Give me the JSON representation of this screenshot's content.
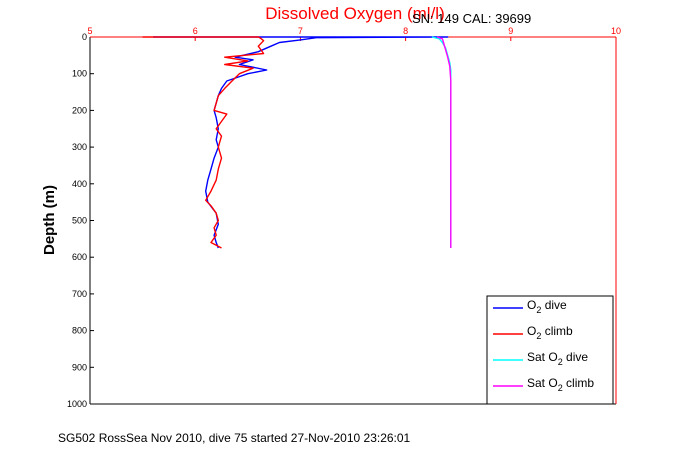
{
  "chart_data": {
    "type": "line",
    "title": "Dissolved Oxygen (ml/l)",
    "subtitle": "SN: 149  CAL: 39699",
    "ylabel": "Depth (m)",
    "caption": "SG502 RossSea Nov 2010, dive 75 started 27-Nov-2010 23:26:01",
    "xlim": [
      5,
      10
    ],
    "ylim": [
      0,
      1000
    ],
    "y_reversed": true,
    "x_axis_position": "top",
    "xticks": [
      5,
      6,
      7,
      8,
      9,
      10
    ],
    "yticks": [
      0,
      100,
      200,
      300,
      400,
      500,
      600,
      700,
      800,
      900,
      1000
    ],
    "grid": true,
    "legend_position": "bottom-right",
    "series": [
      {
        "name": "O2 dive",
        "label_main": "O",
        "label_sub": "2",
        "label_rest": " dive",
        "color": "#0000ff",
        "points": [
          [
            5.6,
            0
          ],
          [
            8.4,
            0
          ],
          [
            7.15,
            2
          ],
          [
            7.0,
            8
          ],
          [
            6.8,
            15
          ],
          [
            6.72,
            25
          ],
          [
            6.6,
            40
          ],
          [
            6.38,
            55
          ],
          [
            6.55,
            62
          ],
          [
            6.42,
            75
          ],
          [
            6.68,
            90
          ],
          [
            6.5,
            100
          ],
          [
            6.4,
            110
          ],
          [
            6.3,
            120
          ],
          [
            6.25,
            140
          ],
          [
            6.22,
            160
          ],
          [
            6.2,
            180
          ],
          [
            6.18,
            200
          ],
          [
            6.2,
            220
          ],
          [
            6.22,
            250
          ],
          [
            6.2,
            280
          ],
          [
            6.22,
            300
          ],
          [
            6.18,
            330
          ],
          [
            6.15,
            360
          ],
          [
            6.12,
            390
          ],
          [
            6.1,
            420
          ],
          [
            6.12,
            450
          ],
          [
            6.2,
            480
          ],
          [
            6.22,
            510
          ],
          [
            6.18,
            540
          ],
          [
            6.2,
            560
          ],
          [
            6.22,
            575
          ]
        ]
      },
      {
        "name": "O2 climb",
        "label_main": "O",
        "label_sub": "2",
        "label_rest": " climb",
        "color": "#ff0000",
        "points": [
          [
            6.25,
            575
          ],
          [
            6.15,
            560
          ],
          [
            6.2,
            540
          ],
          [
            6.18,
            520
          ],
          [
            6.22,
            500
          ],
          [
            6.2,
            480
          ],
          [
            6.15,
            460
          ],
          [
            6.1,
            445
          ],
          [
            6.15,
            420
          ],
          [
            6.2,
            390
          ],
          [
            6.22,
            360
          ],
          [
            6.25,
            330
          ],
          [
            6.22,
            300
          ],
          [
            6.25,
            270
          ],
          [
            6.2,
            250
          ],
          [
            6.25,
            230
          ],
          [
            6.3,
            210
          ],
          [
            6.18,
            200
          ],
          [
            6.2,
            180
          ],
          [
            6.22,
            160
          ],
          [
            6.28,
            140
          ],
          [
            6.35,
            120
          ],
          [
            6.42,
            100
          ],
          [
            6.55,
            85
          ],
          [
            6.28,
            75
          ],
          [
            6.5,
            65
          ],
          [
            6.28,
            55
          ],
          [
            6.65,
            45
          ],
          [
            6.6,
            25
          ],
          [
            6.65,
            10
          ],
          [
            6.62,
            3
          ],
          [
            6.6,
            0
          ],
          [
            5.5,
            0
          ]
        ]
      },
      {
        "name": "Sat O2 dive",
        "label_main": "Sat O",
        "label_sub": "2",
        "label_rest": " dive",
        "color": "#00ffff",
        "points": [
          [
            8.25,
            0
          ],
          [
            8.32,
            5
          ],
          [
            8.35,
            15
          ],
          [
            8.38,
            30
          ],
          [
            8.4,
            50
          ],
          [
            8.42,
            70
          ],
          [
            8.43,
            90
          ],
          [
            8.43,
            150
          ],
          [
            8.43,
            250
          ],
          [
            8.43,
            350
          ],
          [
            8.43,
            450
          ],
          [
            8.43,
            575
          ]
        ]
      },
      {
        "name": "Sat O2 climb",
        "label_main": "Sat O",
        "label_sub": "2",
        "label_rest": " climb",
        "color": "#ff00ff",
        "points": [
          [
            8.43,
            575
          ],
          [
            8.43,
            500
          ],
          [
            8.43,
            400
          ],
          [
            8.43,
            300
          ],
          [
            8.43,
            200
          ],
          [
            8.43,
            120
          ],
          [
            8.42,
            80
          ],
          [
            8.4,
            55
          ],
          [
            8.38,
            35
          ],
          [
            8.36,
            15
          ],
          [
            8.35,
            5
          ],
          [
            8.3,
            0
          ]
        ]
      }
    ]
  }
}
